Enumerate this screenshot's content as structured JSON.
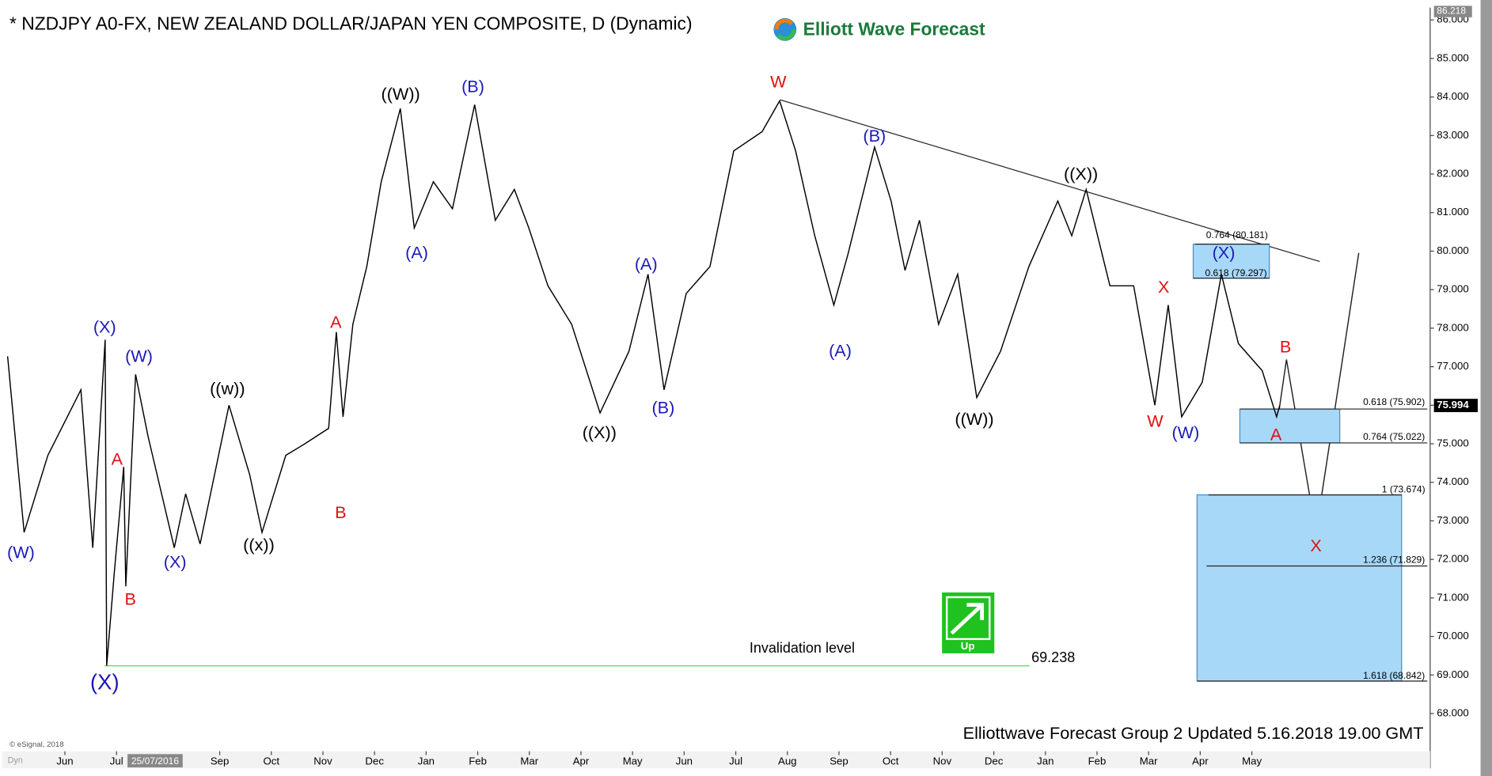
{
  "chart_data": {
    "type": "line",
    "title": "* NZDJPY A0-FX, NEW ZEALAND DOLLAR/JAPAN YEN COMPOSITE, D (Dynamic)",
    "brand": "Elliott Wave Forecast",
    "footer": "Elliottwave Forecast Group 2 Updated 5.16.2018 19.00 GMT",
    "copyright": "© eSignal, 2018",
    "cursor_date": "25/07/2016",
    "mode_label": "Dyn",
    "signal": "Up",
    "color": "#000000",
    "x": [
      -1.11,
      -0.79,
      -0.33,
      0.31,
      0.54,
      0.78,
      0.81,
      0.96,
      1.14,
      1.18,
      1.37,
      1.61,
      2.12,
      2.34,
      2.62,
      3.18,
      3.58,
      3.82,
      4.28,
      4.65,
      5.11,
      5.26,
      5.39,
      5.58,
      5.85,
      6.13,
      6.5,
      6.77,
      7.14,
      7.51,
      7.94,
      8.34,
      8.71,
      8.99,
      9.36,
      9.82,
      10.37,
      10.93,
      11.3,
      11.61,
      12.04,
      12.5,
      12.96,
      13.51,
      13.85,
      14.16,
      14.53,
      14.9,
      15.17,
      15.69,
      16.01,
      16.28,
      16.56,
      16.93,
      17.3,
      17.67,
      18.13,
      18.68,
      19.24,
      19.51,
      19.79,
      20.25,
      20.71,
      21.12,
      21.38,
      21.64,
      22.04,
      22.41,
      22.74,
      23.2,
      23.48,
      23.54
    ],
    "values": [
      77.27,
      72.7,
      74.7,
      76.4,
      72.3,
      77.7,
      69.24,
      71.7,
      74.4,
      71.3,
      76.8,
      75.2,
      72.3,
      73.7,
      72.4,
      76.0,
      74.2,
      72.7,
      74.7,
      75.0,
      75.4,
      77.9,
      75.7,
      78.1,
      79.6,
      81.8,
      83.7,
      80.6,
      81.8,
      81.1,
      83.8,
      80.8,
      81.6,
      80.6,
      79.1,
      78.1,
      75.8,
      77.4,
      79.4,
      76.4,
      78.9,
      79.6,
      82.6,
      83.1,
      83.9,
      82.6,
      80.4,
      78.6,
      79.9,
      82.7,
      81.3,
      79.5,
      80.8,
      78.1,
      79.4,
      76.2,
      77.4,
      79.6,
      81.3,
      80.4,
      81.6,
      79.1,
      79.1,
      76.0,
      78.6,
      75.7,
      76.6,
      79.4,
      77.6,
      76.9,
      75.7,
      75.994
    ],
    "xlim": [
      -1.11,
      26.4
    ],
    "xticks": [
      {
        "value": 0,
        "label": "Jun"
      },
      {
        "value": 1,
        "label": "Jul"
      },
      {
        "value": 3,
        "label": "Sep"
      },
      {
        "value": 4,
        "label": "Oct"
      },
      {
        "value": 5,
        "label": "Nov"
      },
      {
        "value": 6,
        "label": "Dec"
      },
      {
        "value": 7,
        "label": "Jan"
      },
      {
        "value": 8,
        "label": "Feb"
      },
      {
        "value": 9,
        "label": "Mar"
      },
      {
        "value": 10,
        "label": "Apr"
      },
      {
        "value": 11,
        "label": "May"
      },
      {
        "value": 12,
        "label": "Jun"
      },
      {
        "value": 13,
        "label": "Jul"
      },
      {
        "value": 14,
        "label": "Aug"
      },
      {
        "value": 15,
        "label": "Sep"
      },
      {
        "value": 16,
        "label": "Oct"
      },
      {
        "value": 17,
        "label": "Nov"
      },
      {
        "value": 18,
        "label": "Dec"
      },
      {
        "value": 19,
        "label": "Jan"
      },
      {
        "value": 20,
        "label": "Feb"
      },
      {
        "value": 21,
        "label": "Mar"
      },
      {
        "value": 22,
        "label": "Apr"
      },
      {
        "value": 23,
        "label": "May"
      }
    ],
    "ylim": [
      67.02,
      86.27
    ],
    "yticks": [
      {
        "value": 68,
        "label": "68.000"
      },
      {
        "value": 69,
        "label": "69.000"
      },
      {
        "value": 70,
        "label": "70.000"
      },
      {
        "value": 71,
        "label": "71.000"
      },
      {
        "value": 72,
        "label": "72.000"
      },
      {
        "value": 73,
        "label": "73.000"
      },
      {
        "value": 74,
        "label": "74.000"
      },
      {
        "value": 75,
        "label": "75.000"
      },
      {
        "value": 76,
        "label": "76.000"
      },
      {
        "value": 77,
        "label": "77.000"
      },
      {
        "value": 78,
        "label": "78.000"
      },
      {
        "value": 79,
        "label": "79.000"
      },
      {
        "value": 80,
        "label": "80.000"
      },
      {
        "value": 81,
        "label": "81.000"
      },
      {
        "value": 82,
        "label": "82.000"
      },
      {
        "value": 83,
        "label": "83.000"
      },
      {
        "value": 84,
        "label": "84.000"
      },
      {
        "value": 85,
        "label": "85.000"
      },
      {
        "value": 86,
        "label": "86.000"
      }
    ],
    "last_price": 75.994,
    "high_marker": 86.218,
    "annotations": [
      {
        "text": "(W)",
        "color": "#1a1ab8"
      },
      {
        "text": "(X)",
        "color": "#1a1ab8"
      },
      {
        "text": "(W)",
        "color": "#1a1ab8"
      },
      {
        "text": "A",
        "color": "#e01010"
      },
      {
        "text": "B",
        "color": "#e01010"
      },
      {
        "text": "(X)",
        "color": "#1a1ab8"
      },
      {
        "text": "((w))",
        "color": "#000000"
      },
      {
        "text": "((x))",
        "color": "#000000"
      },
      {
        "text": "A",
        "color": "#e01010"
      },
      {
        "text": "B",
        "color": "#e01010"
      },
      {
        "text": "(X)",
        "color": "#1a1ab8"
      },
      {
        "text": "((W))",
        "color": "#000000"
      },
      {
        "text": "(A)",
        "color": "#1a1ab8"
      },
      {
        "text": "(B)",
        "color": "#1a1ab8"
      },
      {
        "text": "((X))",
        "color": "#000000"
      },
      {
        "text": "(A)",
        "color": "#1a1ab8"
      },
      {
        "text": "(B)",
        "color": "#1a1ab8"
      },
      {
        "text": "W",
        "color": "#e01010"
      },
      {
        "text": "(A)",
        "color": "#1a1ab8"
      },
      {
        "text": "(B)",
        "color": "#1a1ab8"
      },
      {
        "text": "((W))",
        "color": "#000000"
      },
      {
        "text": "((X))",
        "color": "#000000"
      },
      {
        "text": "X",
        "color": "#e01010"
      },
      {
        "text": "W",
        "color": "#e01010"
      },
      {
        "text": "(W)",
        "color": "#1a1ab8"
      },
      {
        "text": "(X)",
        "color": "#1a1ab8"
      },
      {
        "text": "B",
        "color": "#e01010"
      },
      {
        "text": "A",
        "color": "#e01010"
      },
      {
        "text": "X",
        "color": "#e01010"
      }
    ],
    "fib_levels": [
      {
        "label": "0.764 (80.181)",
        "value": 80.181
      },
      {
        "label": "0.618 (79.297)",
        "value": 79.297
      },
      {
        "label": "0.618 (75.902)",
        "value": 75.902
      },
      {
        "label": "0.764 (75.022)",
        "value": 75.022
      },
      {
        "label": "1 (73.674)",
        "value": 73.674
      },
      {
        "label": "1.236 (71.829)",
        "value": 71.829
      },
      {
        "label": "1.618 (68.842)",
        "value": 68.842
      }
    ],
    "zone_color": "#a8d8f8",
    "invalidation": {
      "label": "Invalidation level",
      "value": 69.238,
      "color": "#66dd66"
    }
  }
}
